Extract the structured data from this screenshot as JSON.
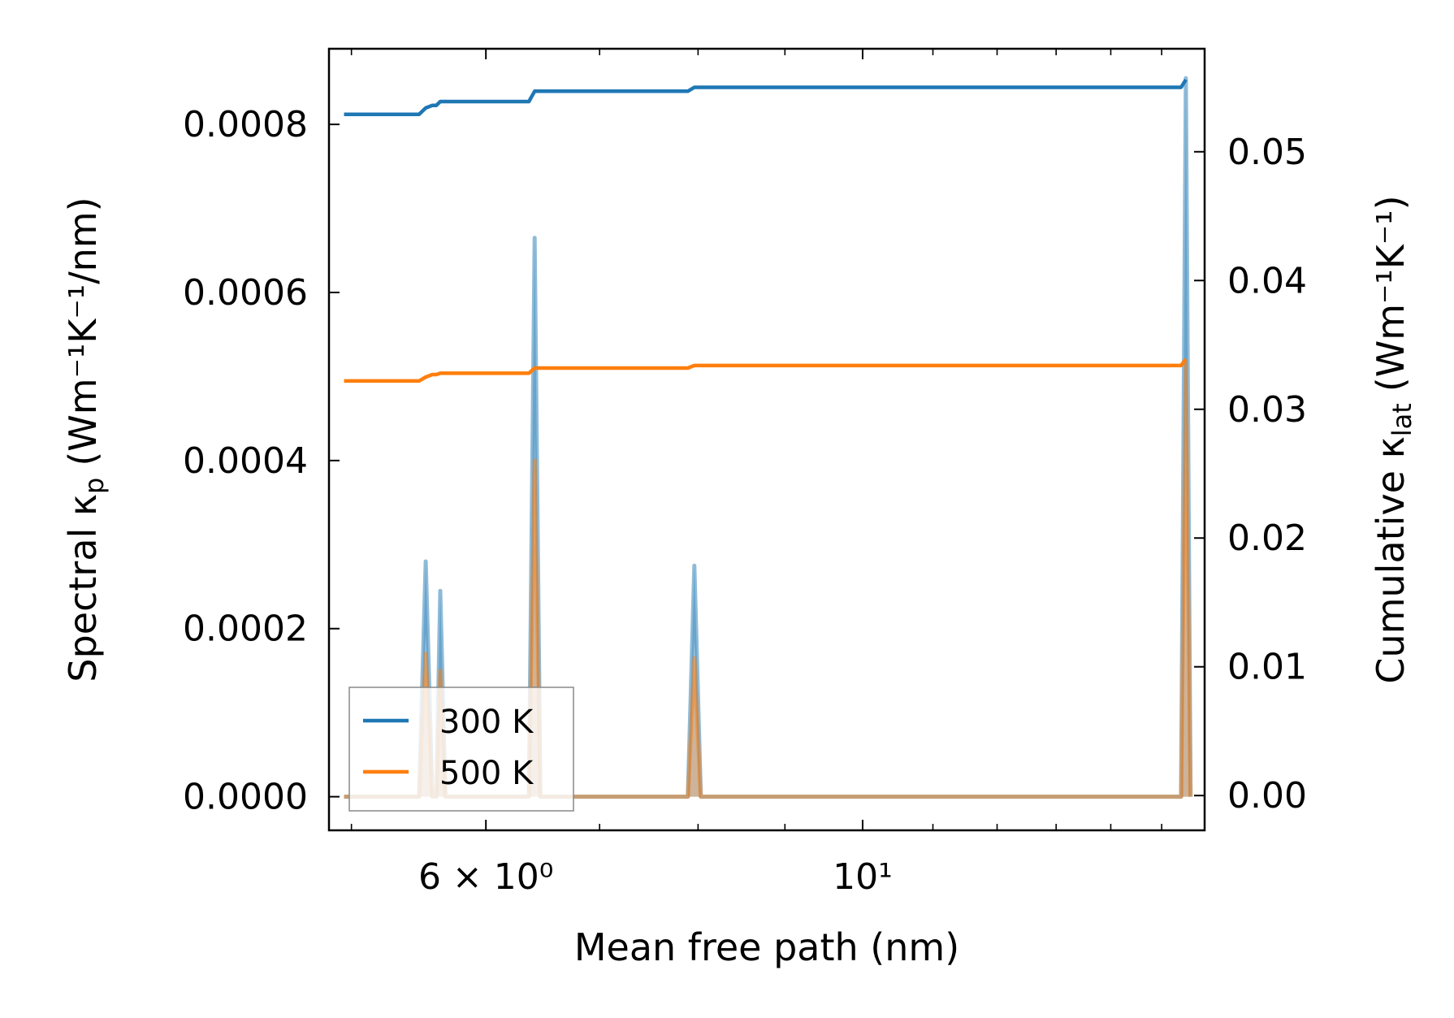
{
  "chart_data": {
    "type": "line",
    "xlabel": "Mean free path (nm)",
    "ylabel_left": "Spectral κ",
    "ylabel_left_sub": "p",
    "ylabel_left_unit": "(Wm⁻¹K⁻¹/nm)",
    "ylabel_right": "Cumulative κ",
    "ylabel_right_sub": "lat",
    "ylabel_right_unit": "(Wm⁻¹K⁻¹)",
    "x_scale": "log",
    "xlim": [
      4.85,
      15.9
    ],
    "x_ticks": [
      {
        "value": 6,
        "label": "6 × 10⁰"
      },
      {
        "value": 10,
        "label": "10¹"
      }
    ],
    "ylim_left": [
      -4e-05,
      0.00089
    ],
    "yticks_left": [
      "0.0000",
      "0.0002",
      "0.0004",
      "0.0006",
      "0.0008"
    ],
    "ylim_right": [
      -0.0027,
      0.058
    ],
    "yticks_right": [
      "0.00",
      "0.01",
      "0.02",
      "0.03",
      "0.04",
      "0.05"
    ],
    "legend": {
      "position": "lower-left",
      "entries": [
        "300 K",
        "500 K"
      ]
    },
    "series": [
      {
        "name": "300 K",
        "color": "#1f77b4",
        "spectral": {
          "x": [
            4.95,
            5.48,
            5.53,
            5.58,
            5.61,
            5.64,
            5.68,
            5.72,
            6.36,
            6.41,
            6.46,
            7.89,
            7.96,
            8.03,
            15.4,
            15.5,
            15.6
          ],
          "y": [
            0,
            0,
            0.00028,
            0,
            0,
            0.000245,
            0,
            0,
            0,
            0.000665,
            0,
            0,
            0.000275,
            0,
            0,
            0.000855,
            0
          ]
        },
        "cumulative": {
          "x": [
            4.95,
            5.48,
            5.53,
            5.58,
            5.61,
            5.64,
            5.68,
            6.36,
            6.41,
            7.89,
            7.96,
            15.4,
            15.5
          ],
          "y": [
            0.0529,
            0.0529,
            0.0534,
            0.0536,
            0.0536,
            0.0539,
            0.0539,
            0.0539,
            0.0547,
            0.0547,
            0.055,
            0.055,
            0.0556
          ]
        }
      },
      {
        "name": "500 K",
        "color": "#ff7f0e",
        "spectral": {
          "x": [
            4.95,
            5.48,
            5.53,
            5.58,
            5.61,
            5.64,
            5.68,
            5.72,
            6.36,
            6.41,
            6.46,
            7.89,
            7.96,
            8.03,
            15.4,
            15.5,
            15.6
          ],
          "y": [
            0,
            0,
            0.00017,
            0,
            0,
            0.00015,
            0,
            0,
            0,
            0.0004,
            0,
            0,
            0.000165,
            0,
            0,
            0.000515,
            0
          ]
        },
        "cumulative": {
          "x": [
            4.95,
            5.48,
            5.53,
            5.58,
            5.61,
            5.64,
            5.68,
            6.36,
            6.41,
            7.89,
            7.96,
            15.4,
            15.5
          ],
          "y": [
            0.0322,
            0.0322,
            0.0325,
            0.0327,
            0.0327,
            0.0328,
            0.0328,
            0.0328,
            0.0332,
            0.0332,
            0.0334,
            0.0334,
            0.0339
          ]
        }
      }
    ]
  }
}
